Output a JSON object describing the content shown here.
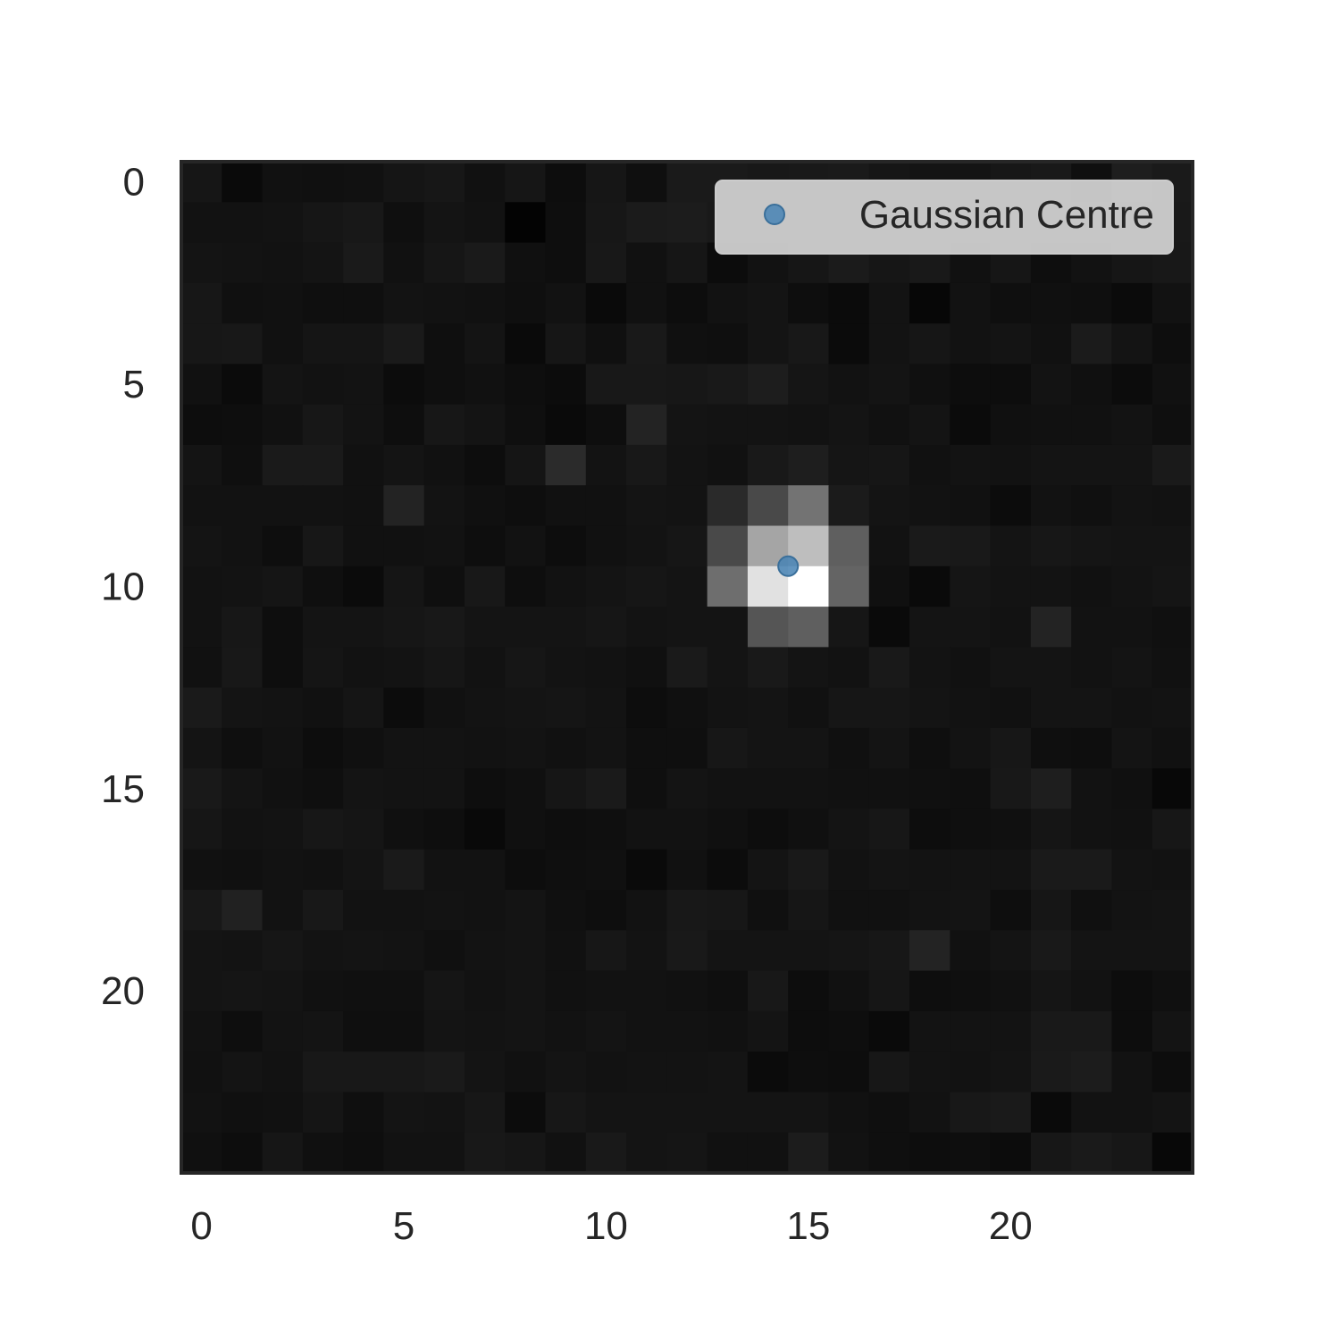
{
  "chart_data": {
    "type": "heatmap",
    "title": "",
    "xlabel": "",
    "ylabel": "",
    "colormap": "gray",
    "value_range": [
      0,
      255
    ],
    "x_ticks": [
      0,
      5,
      10,
      15,
      20
    ],
    "y_ticks": [
      0,
      5,
      10,
      15,
      20
    ],
    "xlim": [
      -0.5,
      24.5
    ],
    "ylim": [
      24.5,
      -0.5
    ],
    "grid": false,
    "legend": {
      "placement": "top-right",
      "entries": [
        {
          "label": "Gaussian Centre",
          "marker": "circle",
          "color": "#4682b4"
        }
      ]
    },
    "series": [
      {
        "name": "Gaussian Centre",
        "type": "scatter",
        "points": [
          {
            "x": 14.5,
            "y": 9.5
          }
        ]
      }
    ],
    "matrix": [
      [
        22,
        10,
        17,
        16,
        17,
        21,
        23,
        17,
        22,
        13,
        22,
        15,
        26,
        26,
        24,
        25,
        26,
        22,
        20,
        20,
        23,
        25,
        15,
        30,
        26
      ],
      [
        18,
        18,
        19,
        22,
        24,
        15,
        20,
        18,
        3,
        14,
        23,
        27,
        28,
        25,
        24,
        29,
        27,
        24,
        26,
        25,
        27,
        22,
        21,
        24,
        25
      ],
      [
        20,
        19,
        18,
        20,
        26,
        17,
        22,
        26,
        16,
        14,
        24,
        17,
        22,
        12,
        18,
        22,
        27,
        22,
        25,
        17,
        22,
        14,
        18,
        22,
        24
      ],
      [
        23,
        16,
        17,
        15,
        15,
        19,
        18,
        17,
        15,
        18,
        10,
        17,
        13,
        18,
        20,
        14,
        11,
        19,
        7,
        18,
        15,
        16,
        15,
        11,
        18
      ],
      [
        23,
        24,
        17,
        21,
        21,
        26,
        15,
        20,
        10,
        22,
        16,
        25,
        16,
        15,
        20,
        24,
        11,
        19,
        22,
        18,
        20,
        17,
        27,
        20,
        14
      ],
      [
        17,
        11,
        20,
        18,
        19,
        12,
        15,
        17,
        14,
        12,
        24,
        24,
        23,
        25,
        29,
        21,
        18,
        20,
        16,
        13,
        13,
        19,
        16,
        12,
        17
      ],
      [
        13,
        14,
        17,
        23,
        19,
        14,
        23,
        20,
        15,
        10,
        14,
        35,
        20,
        19,
        19,
        18,
        20,
        17,
        20,
        11,
        16,
        17,
        17,
        19,
        15
      ],
      [
        20,
        15,
        26,
        26,
        17,
        20,
        17,
        13,
        21,
        43,
        19,
        24,
        19,
        17,
        25,
        30,
        21,
        22,
        17,
        19,
        18,
        20,
        20,
        20,
        26
      ],
      [
        18,
        18,
        18,
        18,
        17,
        35,
        19,
        16,
        14,
        17,
        17,
        20,
        19,
        42,
        73,
        115,
        27,
        20,
        18,
        17,
        12,
        18,
        16,
        19,
        18
      ],
      [
        20,
        18,
        14,
        23,
        17,
        17,
        18,
        14,
        18,
        13,
        17,
        19,
        22,
        73,
        165,
        190,
        95,
        18,
        26,
        25,
        20,
        23,
        21,
        20,
        20
      ],
      [
        18,
        19,
        21,
        15,
        11,
        21,
        15,
        24,
        14,
        18,
        20,
        22,
        20,
        110,
        225,
        255,
        100,
        16,
        10,
        21,
        19,
        19,
        17,
        19,
        21
      ],
      [
        18,
        23,
        14,
        20,
        20,
        22,
        24,
        20,
        20,
        20,
        22,
        19,
        20,
        20,
        85,
        95,
        22,
        10,
        20,
        20,
        18,
        35,
        18,
        18,
        16
      ],
      [
        17,
        24,
        14,
        21,
        18,
        19,
        22,
        18,
        22,
        19,
        18,
        16,
        26,
        20,
        25,
        20,
        18,
        25,
        19,
        17,
        20,
        20,
        18,
        20,
        17
      ],
      [
        26,
        20,
        19,
        17,
        21,
        12,
        17,
        19,
        20,
        21,
        19,
        13,
        16,
        19,
        20,
        17,
        22,
        22,
        20,
        18,
        17,
        20,
        20,
        18,
        19
      ],
      [
        20,
        15,
        18,
        13,
        16,
        19,
        19,
        18,
        19,
        17,
        19,
        15,
        15,
        23,
        20,
        20,
        16,
        20,
        15,
        19,
        23,
        15,
        14,
        20,
        17
      ],
      [
        25,
        20,
        17,
        15,
        20,
        19,
        19,
        14,
        16,
        22,
        26,
        15,
        20,
        18,
        18,
        18,
        17,
        17,
        16,
        15,
        24,
        30,
        18,
        16,
        8
      ],
      [
        22,
        18,
        19,
        23,
        21,
        16,
        14,
        9,
        16,
        14,
        15,
        18,
        18,
        16,
        13,
        16,
        20,
        23,
        13,
        15,
        16,
        21,
        18,
        17,
        23
      ],
      [
        17,
        16,
        18,
        17,
        20,
        26,
        18,
        18,
        13,
        15,
        16,
        10,
        17,
        12,
        20,
        25,
        18,
        20,
        19,
        19,
        19,
        26,
        26,
        19,
        18
      ],
      [
        24,
        33,
        18,
        24,
        18,
        18,
        19,
        18,
        20,
        16,
        14,
        18,
        24,
        23,
        16,
        22,
        17,
        17,
        19,
        20,
        14,
        22,
        16,
        19,
        20
      ],
      [
        20,
        19,
        22,
        19,
        20,
        19,
        16,
        19,
        20,
        17,
        23,
        19,
        25,
        20,
        20,
        20,
        21,
        23,
        35,
        17,
        20,
        25,
        20,
        20,
        20
      ],
      [
        20,
        21,
        20,
        17,
        16,
        16,
        21,
        18,
        20,
        17,
        18,
        18,
        17,
        15,
        24,
        13,
        17,
        22,
        14,
        15,
        17,
        21,
        18,
        13,
        16
      ],
      [
        18,
        14,
        19,
        20,
        15,
        15,
        20,
        19,
        20,
        18,
        20,
        18,
        18,
        17,
        20,
        13,
        14,
        10,
        19,
        19,
        19,
        25,
        25,
        13,
        20
      ],
      [
        17,
        20,
        18,
        24,
        24,
        24,
        26,
        20,
        17,
        20,
        18,
        19,
        19,
        20,
        11,
        14,
        13,
        23,
        19,
        18,
        20,
        26,
        28,
        18,
        13
      ],
      [
        18,
        16,
        17,
        21,
        15,
        20,
        19,
        23,
        12,
        23,
        20,
        20,
        20,
        20,
        20,
        20,
        17,
        15,
        18,
        24,
        26,
        10,
        18,
        18,
        20
      ],
      [
        16,
        13,
        22,
        16,
        14,
        18,
        18,
        24,
        22,
        17,
        25,
        20,
        21,
        17,
        17,
        28,
        18,
        15,
        13,
        14,
        12,
        23,
        26,
        23,
        8
      ]
    ]
  }
}
